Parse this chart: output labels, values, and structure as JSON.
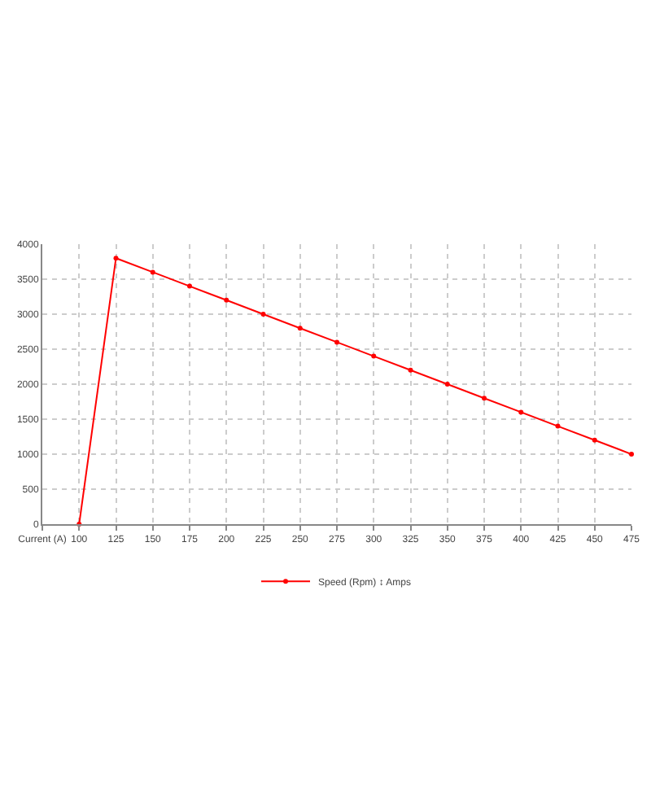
{
  "chart_data": {
    "type": "line",
    "categories": [
      "Current (A)",
      "100",
      "125",
      "150",
      "175",
      "200",
      "225",
      "250",
      "275",
      "300",
      "325",
      "350",
      "375",
      "400",
      "425",
      "450",
      "475"
    ],
    "series": [
      {
        "name": "Speed (Rpm) ↕ Amps",
        "color": "#ff0000",
        "values": [
          null,
          0,
          3800,
          3600,
          3400,
          3200,
          3000,
          2800,
          2600,
          2400,
          2200,
          2000,
          1800,
          1600,
          1400,
          1200,
          1000
        ]
      }
    ],
    "ylim": [
      0,
      4000
    ],
    "yticks": [
      0,
      500,
      1000,
      1500,
      2000,
      2500,
      3000,
      3500,
      4000
    ],
    "grid": true,
    "legend": "bottom",
    "marker": "circle",
    "line_style": "solid"
  }
}
